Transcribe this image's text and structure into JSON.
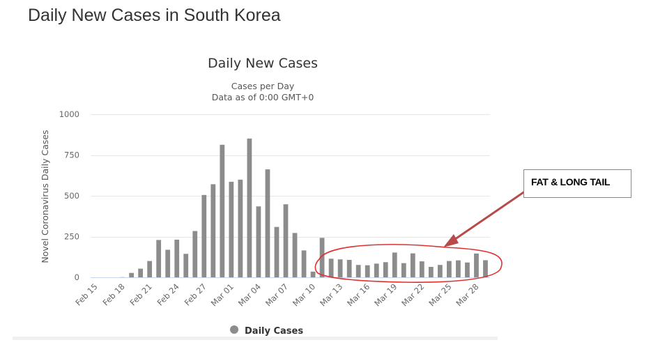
{
  "page": {
    "title": "Daily New Cases in South Korea"
  },
  "chart_data": {
    "type": "bar",
    "title": "Daily New Cases",
    "subtitle_line1": "Cases per Day",
    "subtitle_line2": "Data as of 0:00 GMT+0",
    "ylabel": "Novel Coronavirus Daily Cases",
    "xlabel": "",
    "ylim": [
      0,
      1000
    ],
    "yticks": [
      0,
      250,
      500,
      750,
      1000
    ],
    "grid": true,
    "legend_position": "bottom-center",
    "bar_color": "#8c8c8c",
    "categories": [
      "Feb 15",
      "Feb 16",
      "Feb 17",
      "Feb 18",
      "Feb 19",
      "Feb 20",
      "Feb 21",
      "Feb 22",
      "Feb 23",
      "Feb 24",
      "Feb 25",
      "Feb 26",
      "Feb 27",
      "Feb 28",
      "Feb 29",
      "Mar 01",
      "Mar 02",
      "Mar 03",
      "Mar 04",
      "Mar 05",
      "Mar 06",
      "Mar 07",
      "Mar 08",
      "Mar 09",
      "Mar 10",
      "Mar 11",
      "Mar 12",
      "Mar 13",
      "Mar 14",
      "Mar 15",
      "Mar 16",
      "Mar 17",
      "Mar 18",
      "Mar 19",
      "Mar 20",
      "Mar 21",
      "Mar 22",
      "Mar 23",
      "Mar 24",
      "Mar 25",
      "Mar 26",
      "Mar 27",
      "Mar 28",
      "Mar 29"
    ],
    "tick_labels": [
      "Feb 15",
      "Feb 18",
      "Feb 21",
      "Feb 24",
      "Feb 27",
      "Mar 01",
      "Mar 04",
      "Mar 07",
      "Mar 10",
      "Mar 13",
      "Mar 16",
      "Mar 19",
      "Mar 22",
      "Mar 25",
      "Mar 28"
    ],
    "series": [
      {
        "name": "Daily Cases",
        "values": [
          0,
          0,
          0,
          1,
          27,
          53,
          100,
          229,
          169,
          231,
          144,
          284,
          505,
          571,
          813,
          586,
          599,
          851,
          435,
          662,
          309,
          448,
          272,
          165,
          35,
          242,
          114,
          110,
          107,
          76,
          74,
          84,
          93,
          152,
          87,
          147,
          98,
          64,
          76,
          100,
          104,
          91,
          146,
          105
        ]
      }
    ]
  },
  "annotation": {
    "callout_text": "FAT & LONG TAIL",
    "ellipse_color": "#e03030",
    "arrow_color": "#b84a4a"
  }
}
